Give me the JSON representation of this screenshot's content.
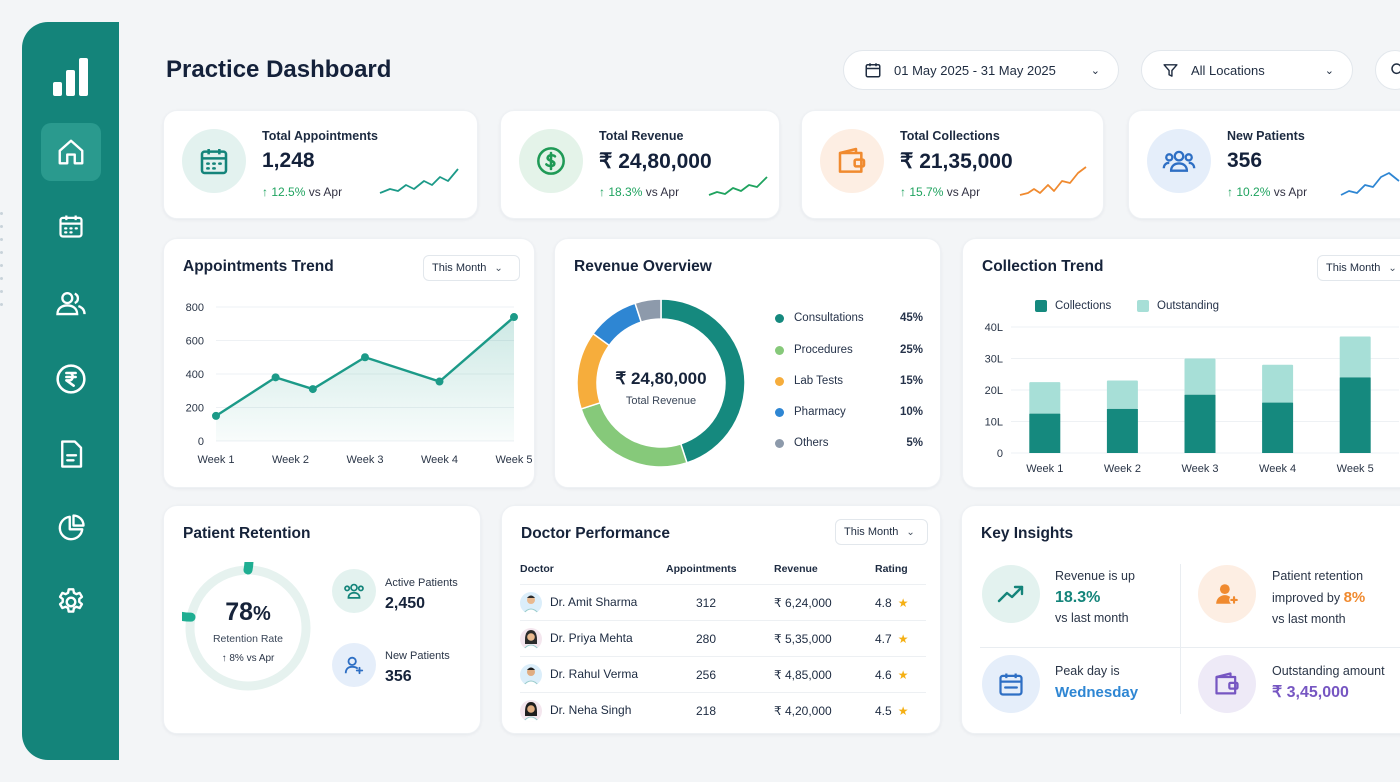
{
  "page": {
    "title": "Practice Dashboard"
  },
  "filters": {
    "date_range": "01 May 2025 - 31 May 2025",
    "location": "All Locations"
  },
  "sidebar": {
    "items": [
      "Dashboard",
      "Appointments",
      "Patients",
      "Billing",
      "Reports",
      "Analytics",
      "Settings"
    ]
  },
  "kpis": [
    {
      "label": "Total Appointments",
      "value": "1,248",
      "delta": "12.5%",
      "delta_suffix": "vs Apr",
      "arrow": "↑"
    },
    {
      "label": "Total Revenue",
      "value": "₹ 24,80,000",
      "delta": "18.3%",
      "delta_suffix": "vs Apr",
      "arrow": "↑"
    },
    {
      "label": "Total Collections",
      "value": "₹ 21,35,000",
      "delta": "15.7%",
      "delta_suffix": "vs Apr",
      "arrow": "↑"
    },
    {
      "label": "New Patients",
      "value": "356",
      "delta": "10.2%",
      "delta_suffix": "vs Apr",
      "arrow": "↑"
    }
  ],
  "appointments_trend": {
    "title": "Appointments Trend",
    "period": "This Month"
  },
  "revenue_overview": {
    "title": "Revenue Overview",
    "center_value": "₹ 24,80,000",
    "center_label": "Total Revenue",
    "legend": [
      {
        "label": "Consultations",
        "pct": "45%"
      },
      {
        "label": "Procedures",
        "pct": "25%"
      },
      {
        "label": "Lab Tests",
        "pct": "15%"
      },
      {
        "label": "Pharmacy",
        "pct": "10%"
      },
      {
        "label": "Others",
        "pct": "5%"
      }
    ]
  },
  "collection_trend": {
    "title": "Collection Trend",
    "period": "This Month"
  },
  "patient_retention": {
    "title": "Patient Retention",
    "rate_value": "78",
    "rate_unit": "%",
    "rate_label": "Retention Rate",
    "rate_delta": "↑ 8% vs Apr",
    "active_label": "Active Patients",
    "active_value": "2,450",
    "new_label": "New Patients",
    "new_value": "356"
  },
  "doctor_performance": {
    "title": "Doctor Performance",
    "period": "This Month",
    "headers": [
      "Doctor",
      "Appointments",
      "Revenue",
      "Rating"
    ],
    "rows": [
      {
        "doctor": "Dr. Amit Sharma",
        "appointments": "312",
        "revenue": "₹ 6,24,000",
        "rating": "4.8"
      },
      {
        "doctor": "Dr. Priya Mehta",
        "appointments": "280",
        "revenue": "₹ 5,35,000",
        "rating": "4.7"
      },
      {
        "doctor": "Dr. Rahul Verma",
        "appointments": "256",
        "revenue": "₹ 4,85,000",
        "rating": "4.6"
      },
      {
        "doctor": "Dr. Neha Singh",
        "appointments": "218",
        "revenue": "₹ 4,20,000",
        "rating": "4.5"
      }
    ]
  },
  "key_insights": {
    "title": "Key Insights",
    "revenue_line1": "Revenue is up",
    "revenue_value": "18.3%",
    "revenue_line3": "vs last month",
    "retention_line1": "Patient retention",
    "retention_line2": "improved by",
    "retention_value": "8%",
    "retention_line3": "vs last month",
    "peak_line1": "Peak day is",
    "peak_value": "Wednesday",
    "outstanding_line1": "Outstanding amount",
    "outstanding_value": "₹ 3,45,000"
  },
  "colors": {
    "primary": "#14847a",
    "consultations": "#15897e",
    "procedures": "#86c97a",
    "lab_tests": "#f6ad3c",
    "pharmacy": "#2e86d3",
    "others": "#8d9aab",
    "collections": "#15897e",
    "outstanding": "#a7dfd7",
    "up": "#1fa35f"
  },
  "chart_data": [
    {
      "type": "line",
      "title": "Appointments Trend",
      "categories": [
        "Week 1",
        "Week 2",
        "Week 3",
        "Week 4",
        "Week 5"
      ],
      "x": [
        1,
        1.8,
        2.3,
        3,
        4,
        5
      ],
      "y": [
        150,
        380,
        310,
        500,
        355,
        740
      ],
      "ylim": [
        0,
        800
      ],
      "yticks": [
        0,
        200,
        400,
        600,
        800
      ]
    },
    {
      "type": "pie",
      "title": "Revenue Overview",
      "labels": [
        "Consultations",
        "Procedures",
        "Lab Tests",
        "Pharmacy",
        "Others"
      ],
      "values": [
        45,
        25,
        15,
        10,
        5
      ]
    },
    {
      "type": "bar",
      "title": "Collection Trend",
      "categories": [
        "Week 1",
        "Week 2",
        "Week 3",
        "Week 4",
        "Week 5"
      ],
      "series": [
        {
          "name": "Collections",
          "values": [
            12.5,
            14,
            18.5,
            16,
            24
          ]
        },
        {
          "name": "Outstanding",
          "values": [
            10,
            9,
            11.5,
            12,
            13
          ]
        }
      ],
      "ylim": [
        0,
        40
      ],
      "yticks": [
        "0",
        "10L",
        "20L",
        "30L",
        "40L"
      ]
    },
    {
      "type": "pie",
      "title": "Patient Retention",
      "labels": [
        "Retention Rate"
      ],
      "values": [
        78
      ]
    }
  ]
}
